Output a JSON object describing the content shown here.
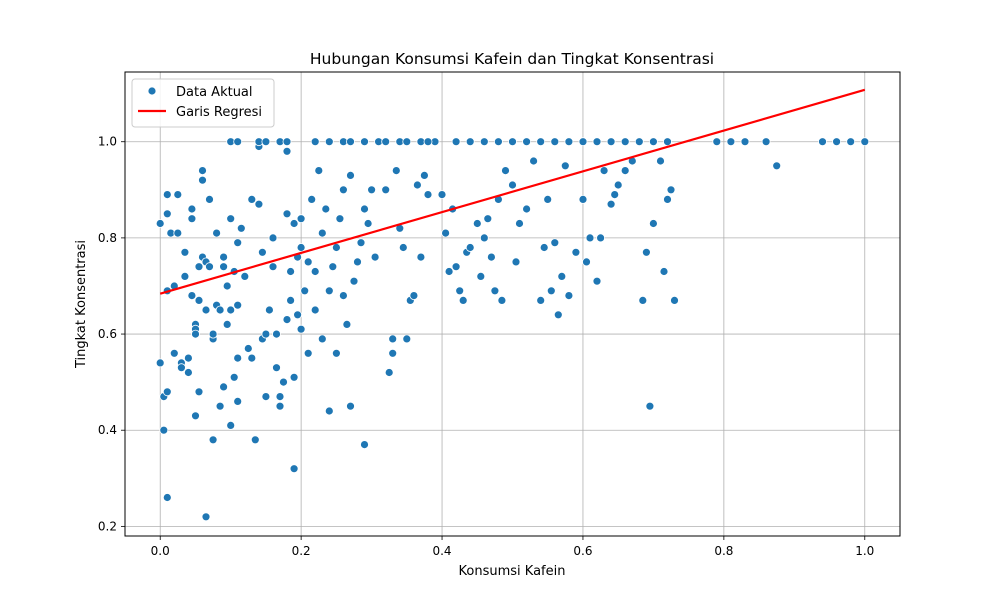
{
  "chart_data": {
    "type": "scatter",
    "title": "Hubungan Konsumsi Kafein dan Tingkat Konsentrasi",
    "xlabel": "Konsumsi Kafein",
    "ylabel": "Tingkat Konsentrasi",
    "xlim": [
      -0.05,
      1.05
    ],
    "ylim": [
      0.18,
      1.145
    ],
    "xticks": [
      0.0,
      0.2,
      0.4,
      0.6,
      0.8,
      1.0
    ],
    "xtick_labels": [
      "0.0",
      "0.2",
      "0.4",
      "0.6",
      "0.8",
      "1.0"
    ],
    "yticks": [
      0.2,
      0.4,
      0.6,
      0.8,
      1.0
    ],
    "ytick_labels": [
      "0.2",
      "0.4",
      "0.6",
      "0.8",
      "1.0"
    ],
    "grid": true,
    "legend_position": "upper-left",
    "colors": {
      "scatter": "#1f77b4",
      "regression": "#ff0000",
      "grid": "#b0b0b0"
    },
    "series": [
      {
        "name": "Data Aktual",
        "kind": "scatter",
        "points": [
          [
            0.0,
            0.54
          ],
          [
            0.0,
            0.83
          ],
          [
            0.005,
            0.47
          ],
          [
            0.005,
            0.4
          ],
          [
            0.01,
            0.26
          ],
          [
            0.01,
            0.48
          ],
          [
            0.01,
            0.69
          ],
          [
            0.01,
            0.85
          ],
          [
            0.01,
            0.89
          ],
          [
            0.015,
            0.81
          ],
          [
            0.02,
            0.56
          ],
          [
            0.02,
            0.7
          ],
          [
            0.025,
            0.81
          ],
          [
            0.025,
            0.89
          ],
          [
            0.03,
            0.54
          ],
          [
            0.03,
            0.53
          ],
          [
            0.035,
            0.72
          ],
          [
            0.035,
            0.77
          ],
          [
            0.04,
            0.52
          ],
          [
            0.04,
            0.55
          ],
          [
            0.045,
            0.68
          ],
          [
            0.045,
            0.84
          ],
          [
            0.045,
            0.86
          ],
          [
            0.05,
            0.62
          ],
          [
            0.05,
            0.61
          ],
          [
            0.05,
            0.6
          ],
          [
            0.05,
            0.43
          ],
          [
            0.055,
            0.74
          ],
          [
            0.055,
            0.67
          ],
          [
            0.055,
            0.48
          ],
          [
            0.06,
            0.92
          ],
          [
            0.06,
            0.94
          ],
          [
            0.06,
            0.76
          ],
          [
            0.065,
            0.75
          ],
          [
            0.065,
            0.65
          ],
          [
            0.065,
            0.22
          ],
          [
            0.07,
            0.74
          ],
          [
            0.07,
            0.88
          ],
          [
            0.075,
            0.38
          ],
          [
            0.075,
            0.59
          ],
          [
            0.075,
            0.6
          ],
          [
            0.08,
            0.81
          ],
          [
            0.08,
            0.66
          ],
          [
            0.085,
            0.65
          ],
          [
            0.085,
            0.45
          ],
          [
            0.09,
            0.49
          ],
          [
            0.09,
            0.76
          ],
          [
            0.09,
            0.74
          ],
          [
            0.095,
            0.62
          ],
          [
            0.095,
            0.7
          ],
          [
            0.1,
            0.65
          ],
          [
            0.1,
            0.41
          ],
          [
            0.1,
            0.84
          ],
          [
            0.105,
            0.73
          ],
          [
            0.105,
            0.51
          ],
          [
            0.11,
            0.55
          ],
          [
            0.11,
            0.66
          ],
          [
            0.11,
            0.79
          ],
          [
            0.11,
            0.46
          ],
          [
            0.115,
            0.82
          ],
          [
            0.12,
            0.72
          ],
          [
            0.125,
            0.57
          ],
          [
            0.13,
            0.55
          ],
          [
            0.13,
            0.88
          ],
          [
            0.135,
            0.38
          ],
          [
            0.14,
            0.99
          ],
          [
            0.14,
            0.87
          ],
          [
            0.145,
            0.59
          ],
          [
            0.145,
            0.77
          ],
          [
            0.15,
            0.6
          ],
          [
            0.15,
            0.47
          ],
          [
            0.155,
            0.65
          ],
          [
            0.16,
            0.74
          ],
          [
            0.16,
            0.8
          ],
          [
            0.165,
            0.53
          ],
          [
            0.165,
            0.6
          ],
          [
            0.17,
            0.47
          ],
          [
            0.17,
            0.45
          ],
          [
            0.175,
            0.5
          ],
          [
            0.18,
            0.85
          ],
          [
            0.18,
            0.63
          ],
          [
            0.18,
            0.98
          ],
          [
            0.185,
            0.67
          ],
          [
            0.185,
            0.73
          ],
          [
            0.19,
            0.83
          ],
          [
            0.19,
            0.32
          ],
          [
            0.19,
            0.51
          ],
          [
            0.195,
            0.64
          ],
          [
            0.195,
            0.76
          ],
          [
            0.2,
            0.78
          ],
          [
            0.2,
            0.84
          ],
          [
            0.2,
            0.61
          ],
          [
            0.205,
            0.69
          ],
          [
            0.21,
            0.56
          ],
          [
            0.21,
            0.75
          ],
          [
            0.215,
            0.88
          ],
          [
            0.22,
            0.73
          ],
          [
            0.22,
            0.65
          ],
          [
            0.225,
            0.94
          ],
          [
            0.23,
            0.59
          ],
          [
            0.23,
            0.81
          ],
          [
            0.235,
            0.86
          ],
          [
            0.24,
            0.69
          ],
          [
            0.24,
            0.44
          ],
          [
            0.245,
            0.74
          ],
          [
            0.25,
            0.56
          ],
          [
            0.25,
            0.78
          ],
          [
            0.255,
            0.84
          ],
          [
            0.26,
            0.9
          ],
          [
            0.26,
            0.68
          ],
          [
            0.265,
            0.62
          ],
          [
            0.27,
            0.45
          ],
          [
            0.27,
            0.93
          ],
          [
            0.275,
            0.71
          ],
          [
            0.28,
            0.75
          ],
          [
            0.285,
            0.79
          ],
          [
            0.29,
            0.37
          ],
          [
            0.29,
            0.86
          ],
          [
            0.295,
            0.83
          ],
          [
            0.3,
            0.9
          ],
          [
            0.305,
            0.76
          ],
          [
            0.32,
            0.9
          ],
          [
            0.325,
            0.52
          ],
          [
            0.33,
            0.56
          ],
          [
            0.33,
            0.59
          ],
          [
            0.335,
            0.94
          ],
          [
            0.34,
            0.82
          ],
          [
            0.345,
            0.78
          ],
          [
            0.35,
            0.59
          ],
          [
            0.355,
            0.67
          ],
          [
            0.36,
            0.68
          ],
          [
            0.365,
            0.91
          ],
          [
            0.37,
            0.76
          ],
          [
            0.375,
            0.93
          ],
          [
            0.38,
            0.89
          ],
          [
            0.39,
            1.0
          ],
          [
            0.4,
            0.89
          ],
          [
            0.405,
            0.81
          ],
          [
            0.41,
            0.73
          ],
          [
            0.415,
            0.86
          ],
          [
            0.42,
            0.74
          ],
          [
            0.425,
            0.69
          ],
          [
            0.43,
            0.67
          ],
          [
            0.435,
            0.77
          ],
          [
            0.44,
            0.78
          ],
          [
            0.45,
            0.83
          ],
          [
            0.455,
            0.72
          ],
          [
            0.46,
            0.8
          ],
          [
            0.465,
            0.84
          ],
          [
            0.47,
            0.76
          ],
          [
            0.475,
            0.69
          ],
          [
            0.48,
            0.88
          ],
          [
            0.485,
            0.67
          ],
          [
            0.49,
            0.94
          ],
          [
            0.5,
            0.91
          ],
          [
            0.505,
            0.75
          ],
          [
            0.51,
            0.83
          ],
          [
            0.52,
            0.86
          ],
          [
            0.53,
            0.96
          ],
          [
            0.54,
            0.67
          ],
          [
            0.545,
            0.78
          ],
          [
            0.55,
            0.88
          ],
          [
            0.555,
            0.69
          ],
          [
            0.56,
            0.79
          ],
          [
            0.565,
            0.64
          ],
          [
            0.57,
            0.72
          ],
          [
            0.575,
            0.95
          ],
          [
            0.58,
            0.68
          ],
          [
            0.59,
            0.77
          ],
          [
            0.6,
            0.88
          ],
          [
            0.605,
            0.75
          ],
          [
            0.61,
            0.8
          ],
          [
            0.62,
            0.71
          ],
          [
            0.625,
            0.8
          ],
          [
            0.63,
            0.94
          ],
          [
            0.64,
            0.87
          ],
          [
            0.645,
            0.89
          ],
          [
            0.65,
            0.91
          ],
          [
            0.66,
            0.94
          ],
          [
            0.67,
            0.96
          ],
          [
            0.685,
            0.67
          ],
          [
            0.69,
            0.77
          ],
          [
            0.695,
            0.45
          ],
          [
            0.7,
            0.83
          ],
          [
            0.71,
            0.96
          ],
          [
            0.715,
            0.73
          ],
          [
            0.72,
            0.88
          ],
          [
            0.725,
            0.9
          ],
          [
            0.73,
            0.67
          ],
          [
            0.875,
            0.95
          ],
          [
            0.1,
            1.0
          ],
          [
            0.11,
            1.0
          ],
          [
            0.14,
            1.0
          ],
          [
            0.15,
            1.0
          ],
          [
            0.17,
            1.0
          ],
          [
            0.18,
            1.0
          ],
          [
            0.22,
            1.0
          ],
          [
            0.24,
            1.0
          ],
          [
            0.26,
            1.0
          ],
          [
            0.27,
            1.0
          ],
          [
            0.29,
            1.0
          ],
          [
            0.31,
            1.0
          ],
          [
            0.32,
            1.0
          ],
          [
            0.34,
            1.0
          ],
          [
            0.35,
            1.0
          ],
          [
            0.37,
            1.0
          ],
          [
            0.38,
            1.0
          ],
          [
            0.42,
            1.0
          ],
          [
            0.44,
            1.0
          ],
          [
            0.46,
            1.0
          ],
          [
            0.48,
            1.0
          ],
          [
            0.5,
            1.0
          ],
          [
            0.52,
            1.0
          ],
          [
            0.54,
            1.0
          ],
          [
            0.56,
            1.0
          ],
          [
            0.58,
            1.0
          ],
          [
            0.6,
            1.0
          ],
          [
            0.62,
            1.0
          ],
          [
            0.64,
            1.0
          ],
          [
            0.66,
            1.0
          ],
          [
            0.68,
            1.0
          ],
          [
            0.7,
            1.0
          ],
          [
            0.72,
            1.0
          ],
          [
            0.79,
            1.0
          ],
          [
            0.81,
            1.0
          ],
          [
            0.83,
            1.0
          ],
          [
            0.86,
            1.0
          ],
          [
            0.94,
            1.0
          ],
          [
            0.96,
            1.0
          ],
          [
            0.98,
            1.0
          ],
          [
            1.0,
            1.0
          ]
        ]
      },
      {
        "name": "Garis Regresi",
        "kind": "line",
        "x": [
          0.0,
          1.0
        ],
        "y": [
          0.684,
          1.108
        ]
      }
    ]
  }
}
